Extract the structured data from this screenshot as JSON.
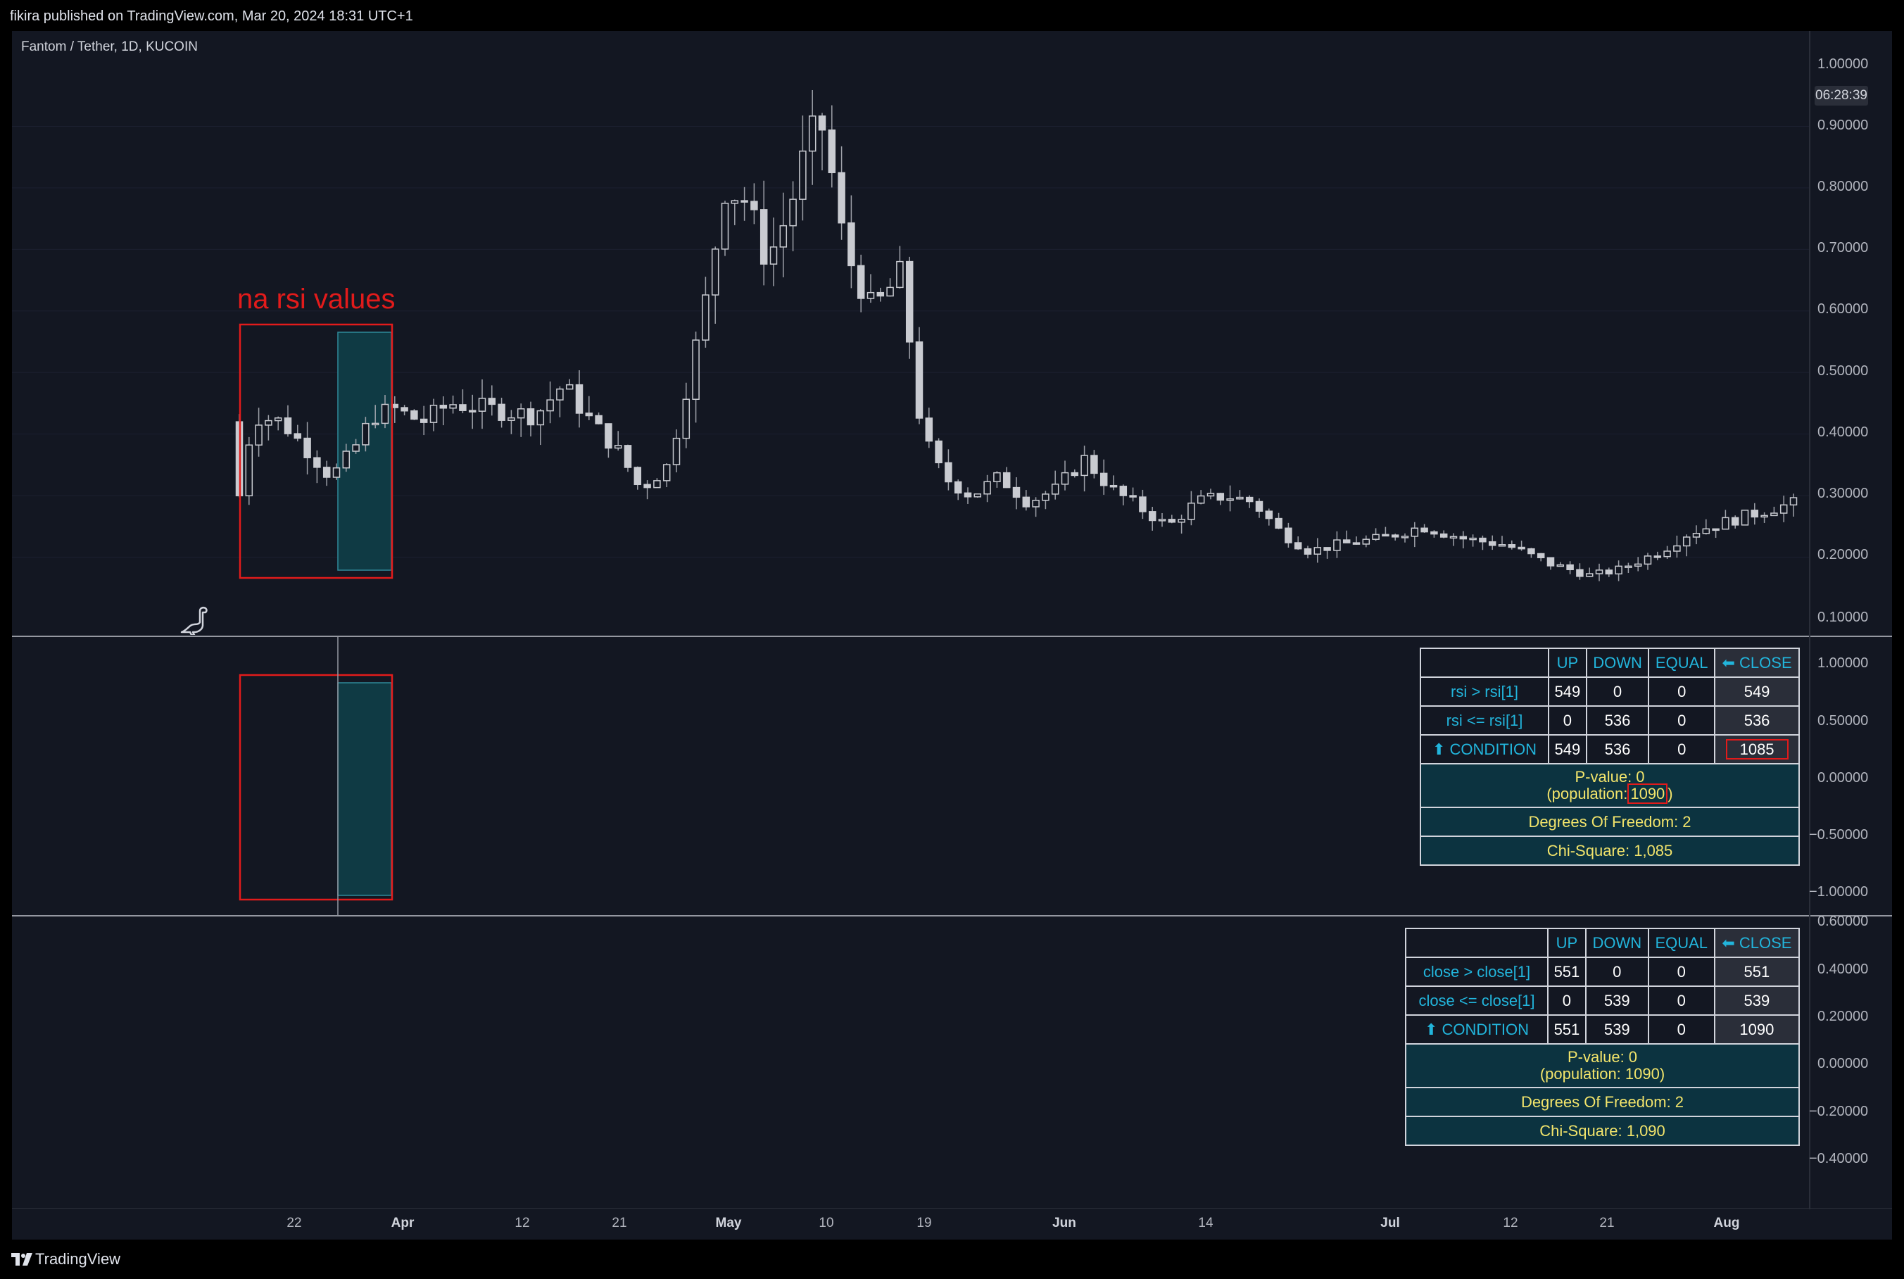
{
  "header": {
    "publish_text": "fikira published on TradingView.com, Mar 20, 2024 18:31 UTC+1"
  },
  "chart": {
    "symbol_label": "Fantom / Tether, 1D, KUCOIN",
    "countdown": "06:28:39",
    "annotation": "na rsi values",
    "price_axis_main": [
      "1.00000",
      "0.90000",
      "0.80000",
      "0.70000",
      "0.60000",
      "0.50000",
      "0.40000",
      "0.30000",
      "0.20000",
      "0.10000"
    ],
    "price_axis_rsi": [
      "1.00000",
      "0.50000",
      "0.00000",
      "−0.50000",
      "−1.00000"
    ],
    "price_axis_close": [
      "0.60000",
      "0.40000",
      "0.20000",
      "0.00000",
      "−0.20000",
      "−0.40000"
    ],
    "time_axis": [
      {
        "label": "22",
        "bold": false
      },
      {
        "label": "Apr",
        "bold": true
      },
      {
        "label": "12",
        "bold": false
      },
      {
        "label": "21",
        "bold": false
      },
      {
        "label": "May",
        "bold": true
      },
      {
        "label": "10",
        "bold": false
      },
      {
        "label": "19",
        "bold": false
      },
      {
        "label": "Jun",
        "bold": true
      },
      {
        "label": "14",
        "bold": false
      },
      {
        "label": "Jul",
        "bold": true
      },
      {
        "label": "12",
        "bold": false
      },
      {
        "label": "21",
        "bold": false
      },
      {
        "label": "Aug",
        "bold": true
      }
    ],
    "colors": {
      "background": "#131722",
      "candle_body": "#c9cbd1",
      "highlight": "#0f3a44",
      "annotation_red": "#e21b1b",
      "table_cyan": "#22b5dc",
      "table_yellow": "#f2e46b"
    }
  },
  "rsi_table": {
    "headers": [
      "UP",
      "DOWN",
      "EQUAL",
      "⬅ CLOSE"
    ],
    "rows": [
      {
        "label": "rsi > rsi[1]",
        "up": "549",
        "down": "0",
        "equal": "0",
        "close": "549"
      },
      {
        "label": "rsi <= rsi[1]",
        "up": "0",
        "down": "536",
        "equal": "0",
        "close": "536"
      },
      {
        "label": "⬆ CONDITION",
        "up": "549",
        "down": "536",
        "equal": "0",
        "close": "1085"
      }
    ],
    "pvalue": "P-value:  0",
    "population_prefix": "(population:",
    "population_value": "1090",
    "population_suffix": ")",
    "dof": "Degrees Of Freedom: 2",
    "chi": "Chi-Square: 1,085"
  },
  "close_table": {
    "headers": [
      "UP",
      "DOWN",
      "EQUAL",
      "⬅ CLOSE"
    ],
    "rows": [
      {
        "label": "close > close[1]",
        "up": "551",
        "down": "0",
        "equal": "0",
        "close": "551"
      },
      {
        "label": "close <= close[1]",
        "up": "0",
        "down": "539",
        "equal": "0",
        "close": "539"
      },
      {
        "label": "⬆ CONDITION",
        "up": "551",
        "down": "539",
        "equal": "0",
        "close": "1090"
      }
    ],
    "pvalue": "P-value:  0",
    "population": "(population: 1090)",
    "dof": "Degrees Of Freedom: 2",
    "chi": "Chi-Square: 1,090"
  },
  "footer": {
    "logo_text": "TradingView"
  }
}
